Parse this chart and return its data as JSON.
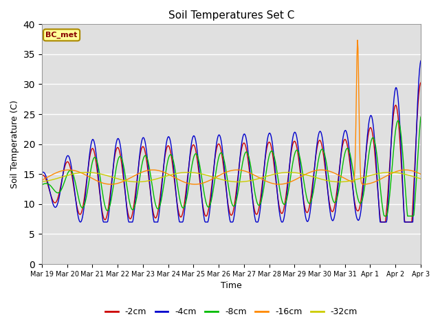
{
  "title": "Soil Temperatures Set C",
  "xlabel": "Time",
  "ylabel": "Soil Temperature (C)",
  "ylim": [
    0,
    40
  ],
  "yticks": [
    0,
    5,
    10,
    15,
    20,
    25,
    30,
    35,
    40
  ],
  "colors": {
    "-2cm": "#cc0000",
    "-4cm": "#0000cc",
    "-8cm": "#00bb00",
    "-16cm": "#ff8800",
    "-32cm": "#cccc00"
  },
  "legend_label": "BC_met",
  "legend_box_facecolor": "#ffff99",
  "legend_box_edgecolor": "#aa8800",
  "background_color": "#e0e0e0",
  "n_days": 15,
  "samples_per_day": 48
}
